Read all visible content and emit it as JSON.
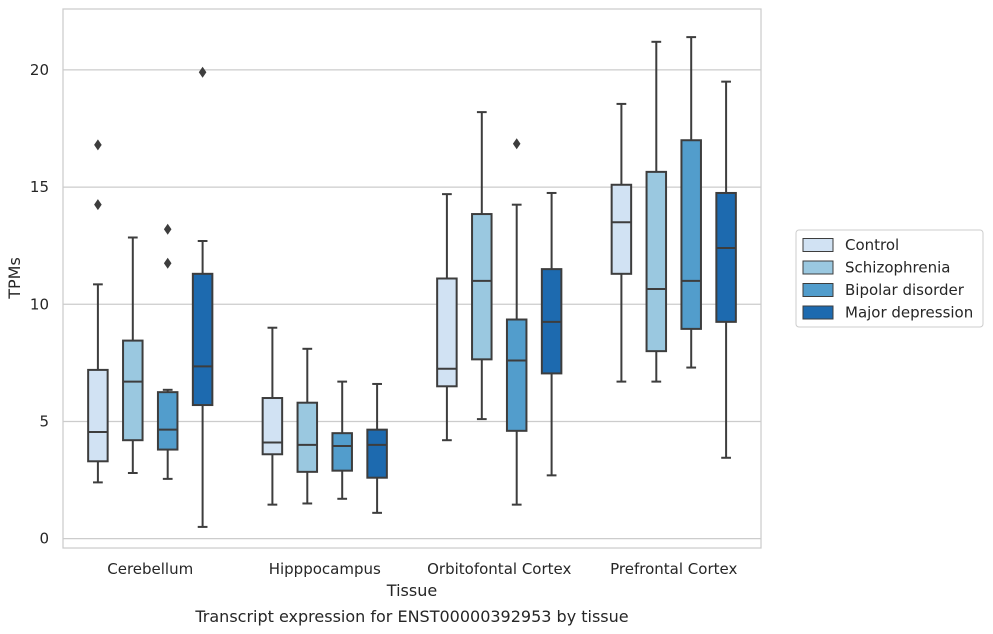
{
  "chart_data": {
    "type": "boxplot",
    "caption": "Transcript expression for ENST00000392953 by tissue",
    "xlabel": "Tissue",
    "ylabel": "TPMs",
    "ylim": [
      -0.4,
      22.6
    ],
    "yticks": [
      0,
      5,
      10,
      15,
      20
    ],
    "grid": "horizontal",
    "legend_position": "right",
    "categories": [
      "Cerebellum",
      "Hipppocampus",
      "Orbitofontal Cortex",
      "Prefrontal Cortex"
    ],
    "series": [
      {
        "name": "Control",
        "color": "#d1e2f3",
        "boxes": [
          {
            "whislo": 2.4,
            "q1": 3.3,
            "med": 4.55,
            "q3": 7.2,
            "whishi": 10.85,
            "fliers": [
              14.25,
              16.8
            ]
          },
          {
            "whislo": 1.45,
            "q1": 3.6,
            "med": 4.1,
            "q3": 6.0,
            "whishi": 9.0,
            "fliers": []
          },
          {
            "whislo": 4.2,
            "q1": 6.5,
            "med": 7.25,
            "q3": 11.1,
            "whishi": 14.7,
            "fliers": []
          },
          {
            "whislo": 6.7,
            "q1": 11.3,
            "med": 13.5,
            "q3": 15.1,
            "whishi": 18.55,
            "fliers": []
          }
        ]
      },
      {
        "name": "Schizophrenia",
        "color": "#9ac8e0",
        "boxes": [
          {
            "whislo": 2.8,
            "q1": 4.2,
            "med": 6.7,
            "q3": 8.45,
            "whishi": 12.85,
            "fliers": []
          },
          {
            "whislo": 1.5,
            "q1": 2.85,
            "med": 4.0,
            "q3": 5.8,
            "whishi": 8.1,
            "fliers": []
          },
          {
            "whislo": 5.1,
            "q1": 7.65,
            "med": 11.0,
            "q3": 13.85,
            "whishi": 18.2,
            "fliers": []
          },
          {
            "whislo": 6.7,
            "q1": 8.0,
            "med": 10.65,
            "q3": 15.65,
            "whishi": 21.2,
            "fliers": []
          }
        ]
      },
      {
        "name": "Bipolar disorder",
        "color": "#529dcc",
        "boxes": [
          {
            "whislo": 2.55,
            "q1": 3.8,
            "med": 4.65,
            "q3": 6.25,
            "whishi": 6.35,
            "fliers": [
              11.75,
              13.2
            ]
          },
          {
            "whislo": 1.7,
            "q1": 2.9,
            "med": 3.95,
            "q3": 4.5,
            "whishi": 6.7,
            "fliers": []
          },
          {
            "whislo": 1.45,
            "q1": 4.6,
            "med": 7.6,
            "q3": 9.35,
            "whishi": 14.25,
            "fliers": [
              16.85
            ]
          },
          {
            "whislo": 7.3,
            "q1": 8.95,
            "med": 11.0,
            "q3": 17.0,
            "whishi": 21.4,
            "fliers": []
          }
        ]
      },
      {
        "name": "Major depression",
        "color": "#1d6aaf",
        "boxes": [
          {
            "whislo": 0.5,
            "q1": 5.7,
            "med": 7.35,
            "q3": 11.3,
            "whishi": 12.7,
            "fliers": [
              19.9
            ]
          },
          {
            "whislo": 1.1,
            "q1": 2.6,
            "med": 4.0,
            "q3": 4.65,
            "whishi": 6.6,
            "fliers": []
          },
          {
            "whislo": 2.7,
            "q1": 7.05,
            "med": 9.25,
            "q3": 11.5,
            "whishi": 14.75,
            "fliers": []
          },
          {
            "whislo": 3.45,
            "q1": 9.25,
            "med": 12.4,
            "q3": 14.75,
            "whishi": 19.5,
            "fliers": []
          }
        ]
      }
    ]
  }
}
